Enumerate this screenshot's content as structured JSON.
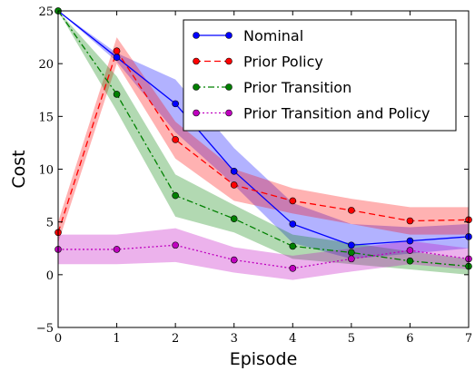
{
  "chart_data": {
    "type": "line",
    "xlabel": "Episode",
    "ylabel": "Cost",
    "xlim": [
      0,
      7
    ],
    "ylim": [
      -5,
      25
    ],
    "x_ticks": [
      "0",
      "1",
      "2",
      "3",
      "4",
      "5",
      "6",
      "7"
    ],
    "y_ticks": [
      "−5",
      "0",
      "5",
      "10",
      "15",
      "20",
      "25"
    ],
    "legend_position": "top-right",
    "x": [
      0,
      1,
      2,
      3,
      4,
      5,
      6,
      7
    ],
    "series": [
      {
        "name": "Nominal",
        "color": "#0000ff",
        "line_style": "solid",
        "values": [
          25.0,
          20.6,
          16.2,
          9.8,
          4.8,
          2.8,
          3.2,
          3.6
        ],
        "lower": [
          25.0,
          20.2,
          13.5,
          8.5,
          3.0,
          1.5,
          2.0,
          2.5
        ],
        "upper": [
          25.0,
          21.0,
          18.5,
          12.0,
          6.8,
          4.8,
          4.5,
          4.8
        ]
      },
      {
        "name": "Prior Policy",
        "color": "#ff0000",
        "line_style": "dashed",
        "values": [
          4.0,
          21.2,
          12.8,
          8.5,
          7.0,
          6.1,
          5.1,
          5.2
        ],
        "lower": [
          3.0,
          20.0,
          11.0,
          7.0,
          5.8,
          4.8,
          3.8,
          3.8
        ],
        "upper": [
          5.0,
          22.5,
          14.5,
          10.0,
          8.2,
          7.2,
          6.4,
          6.4
        ]
      },
      {
        "name": "Prior Transition",
        "color": "#008000",
        "line_style": "dashdot",
        "values": [
          25.0,
          17.1,
          7.5,
          5.3,
          2.7,
          2.1,
          1.3,
          0.8
        ],
        "lower": [
          25.0,
          15.5,
          5.5,
          4.0,
          1.5,
          1.0,
          0.5,
          0.0
        ],
        "upper": [
          25.0,
          18.8,
          9.5,
          6.6,
          3.8,
          3.0,
          2.2,
          1.5
        ]
      },
      {
        "name": "Prior Transition and Policy",
        "color": "#bf00bf",
        "line_style": "dotted",
        "values": [
          2.4,
          2.4,
          2.8,
          1.4,
          0.6,
          1.5,
          2.3,
          1.5
        ],
        "lower": [
          1.0,
          1.0,
          1.2,
          0.2,
          -0.5,
          0.3,
          1.0,
          0.5
        ],
        "upper": [
          3.8,
          3.8,
          4.4,
          2.6,
          1.8,
          2.5,
          3.2,
          2.5
        ]
      }
    ]
  }
}
